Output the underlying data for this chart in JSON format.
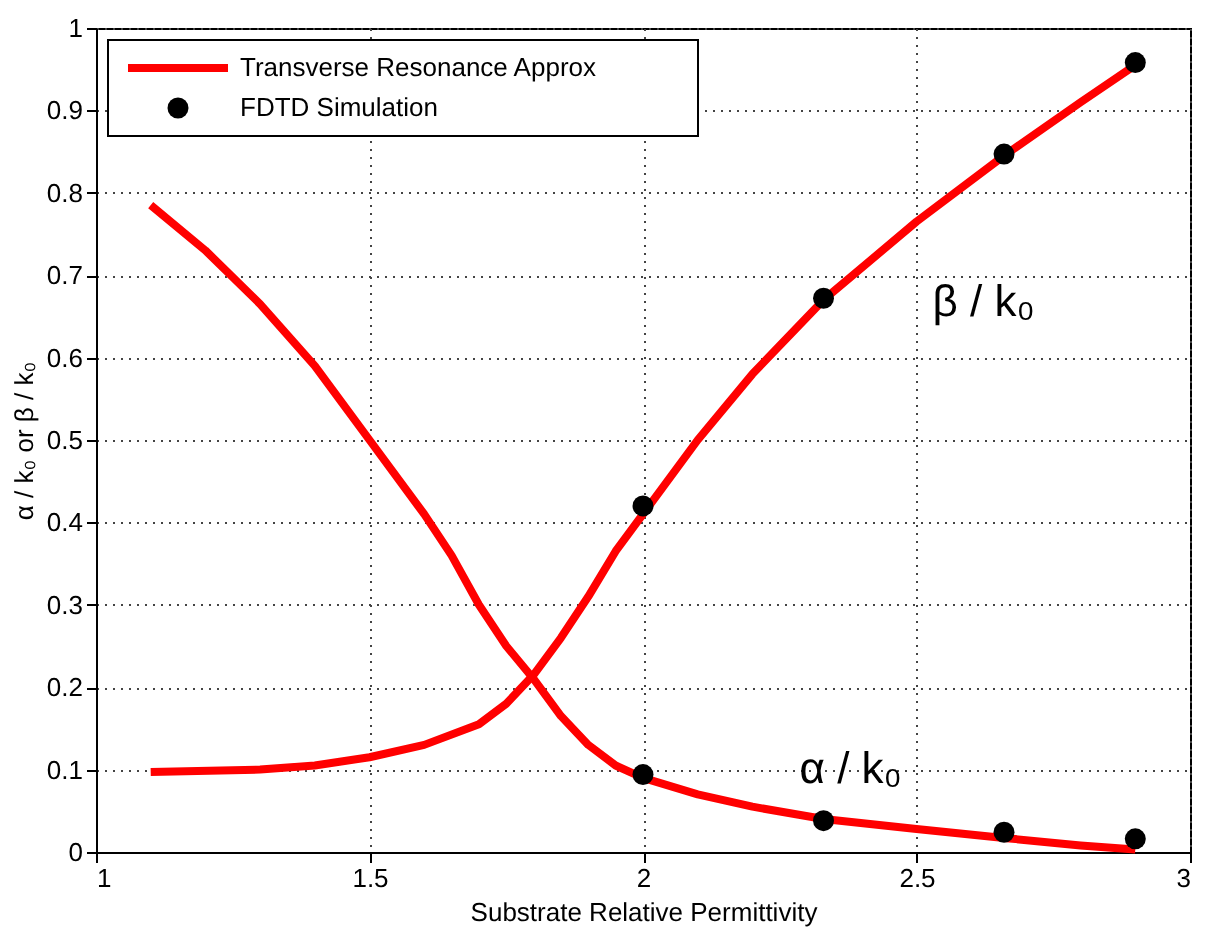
{
  "chart_data": {
    "type": "line",
    "xlabel": "Substrate Relative Permittivity",
    "ylabel": "α / k₀     or     β / k₀",
    "xlim": [
      1,
      3
    ],
    "xticks": [
      1,
      1.5,
      2,
      2.5,
      3
    ],
    "ylim": [
      0,
      1
    ],
    "yticks": [
      0,
      0.1,
      0.2,
      0.3,
      0.4,
      0.5,
      0.6,
      0.7,
      0.8,
      0.9,
      1
    ],
    "grid": true,
    "legend": "top left",
    "series": [
      {
        "name": "Transverse Resonance Approx",
        "color": "#ff0000",
        "marker": "none",
        "line_style": "solid",
        "x": [
          1.1,
          1.3,
          1.4,
          1.5,
          1.6,
          1.7,
          1.75,
          1.8,
          1.85,
          1.9,
          1.95,
          2.0,
          2.1,
          2.2,
          2.33,
          2.5,
          2.66,
          2.8,
          2.9
        ],
        "values": [
          0.097,
          0.1,
          0.105,
          0.115,
          0.13,
          0.155,
          0.18,
          0.215,
          0.26,
          0.31,
          0.365,
          0.41,
          0.5,
          0.58,
          0.67,
          0.765,
          0.845,
          0.91,
          0.955
        ]
      },
      {
        "color": "#ff0000",
        "marker": "none",
        "line_style": "solid",
        "x": [
          1.1,
          1.2,
          1.3,
          1.4,
          1.5,
          1.6,
          1.65,
          1.7,
          1.75,
          1.8,
          1.85,
          1.9,
          1.95,
          2.0,
          2.1,
          2.2,
          2.33,
          2.5,
          2.66,
          2.8,
          2.9
        ],
        "values": [
          0.785,
          0.73,
          0.665,
          0.59,
          0.5,
          0.41,
          0.36,
          0.3,
          0.25,
          0.21,
          0.165,
          0.13,
          0.105,
          0.09,
          0.07,
          0.055,
          0.04,
          0.028,
          0.017,
          0.008,
          0.003
        ]
      },
      {
        "name": "FDTD Simulation",
        "type": "scatter",
        "color": "#000000",
        "marker": "circle",
        "x": [
          2.0,
          2.33,
          2.66,
          2.9,
          2.0,
          2.33,
          2.66,
          2.9
        ],
        "values": [
          0.42,
          0.672,
          0.847,
          0.958,
          0.094,
          0.038,
          0.024,
          0.016
        ]
      }
    ],
    "annotations": [
      {
        "text": "β / k₀",
        "x": 2.5,
        "y": 0.765
      },
      {
        "text": "α / k₀",
        "x": 2.33,
        "y": 0.04
      }
    ]
  }
}
